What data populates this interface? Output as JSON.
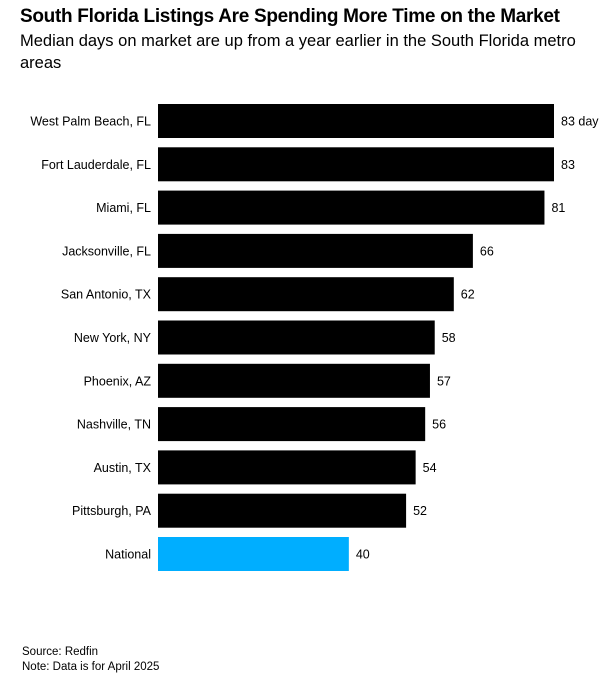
{
  "colors": {
    "bar": "#000000",
    "highlight": "#00AEFF",
    "background": "#ffffff"
  },
  "footer": {
    "source": "Source: Redfin",
    "note": "Note: Data is for April 2025"
  },
  "chart_data": {
    "type": "bar",
    "orientation": "horizontal",
    "title": "South Florida Listings Are Spending More Time on the Market",
    "subtitle": "Median days on market are up from a year earlier in the South Florida metro areas",
    "xlabel": "",
    "ylabel": "",
    "value_unit_suffix": " days",
    "categories": [
      "West Palm Beach, FL",
      "Fort Lauderdale, FL",
      "Miami, FL",
      "Jacksonville, FL",
      "San Antonio, TX",
      "New York, NY",
      "Phoenix, AZ",
      "Nashville, TN",
      "Austin, TX",
      "Pittsburgh, PA",
      "National"
    ],
    "values": [
      83,
      83,
      81,
      66,
      62,
      58,
      57,
      56,
      54,
      52,
      40
    ],
    "value_labels": [
      "83 day",
      "83",
      "81",
      "66",
      "62",
      "58",
      "57",
      "56",
      "54",
      "52",
      "40"
    ],
    "highlighted": [
      "National"
    ],
    "xlim": [
      0,
      83
    ],
    "grid": false,
    "legend": "none"
  }
}
